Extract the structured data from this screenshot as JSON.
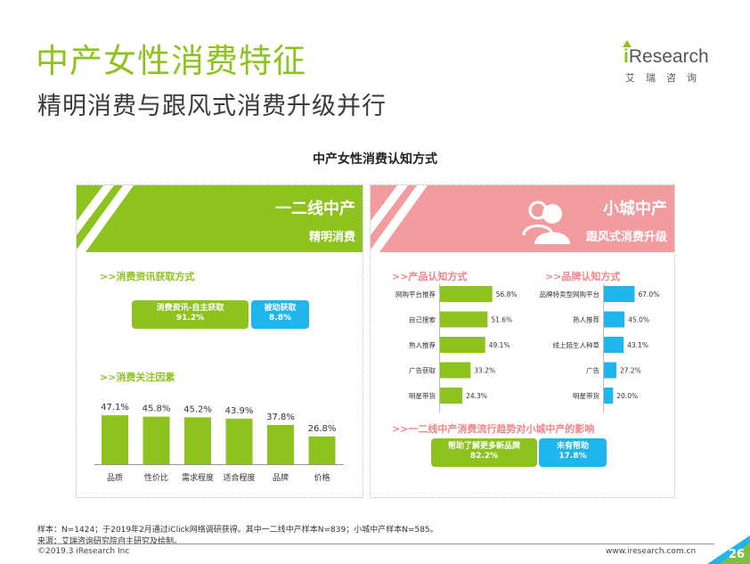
{
  "header": {
    "title": "中产女性消费特征",
    "subtitle": "精明消费与跟风式消费升级并行"
  },
  "logo": {
    "brand_i": "i",
    "brand_rest": "Research",
    "cn": "艾瑞咨询"
  },
  "chart_title": "中产女性消费认知方式",
  "left_panel": {
    "title": "一二线中产",
    "subtitle": "精明消费",
    "section1_label": ">>消费资讯获取方式",
    "pill_active_label": "消费资讯-自主获取",
    "pill_active_value": "91.2%",
    "pill_passive_label": "被动获取",
    "pill_passive_value": "8.8%",
    "section2_label": ">>消费关注因素"
  },
  "right_panel": {
    "title": "小城中产",
    "subtitle": "跟风式消费升级",
    "product_label": ">>产品认知方式",
    "brand_label": ">>品牌认知方式",
    "influence_label": ">>一二线中产消费流行趋势对小城中产的影响",
    "pill_help_label": "帮助了解更多新品牌",
    "pill_help_value": "82.2%",
    "pill_nohelp_label": "未有帮助",
    "pill_nohelp_value": "17.8%"
  },
  "footer": {
    "sample": "样本：N=1424；于2019年2月通过iClick网络调研获得。其中一二线中产样本N=839；小城中产样本N=585。",
    "source": "来源：艾瑞咨询研究院自主研究及绘制。",
    "copyright": "©2019.3 iResearch Inc",
    "url": "www.iresearch.com.cn",
    "page": "26"
  },
  "colors": {
    "green": "#8ec31f",
    "pink": "#f29c9f",
    "blue": "#1fb6ee",
    "pink_text": "#f08589"
  },
  "chart_data": [
    {
      "type": "bar",
      "title": "消费资讯获取方式",
      "categories": [
        "消费资讯-自主获取",
        "被动获取"
      ],
      "values": [
        91.2,
        8.8
      ],
      "unit": "%"
    },
    {
      "type": "bar",
      "title": "消费关注因素",
      "categories": [
        "品质",
        "性价比",
        "需求程度",
        "适合程度",
        "品牌",
        "价格"
      ],
      "values": [
        47.1,
        45.8,
        45.2,
        43.9,
        37.8,
        26.8
      ],
      "labels": [
        "47.1%",
        "45.8%",
        "45.2%",
        "43.9%",
        "37.8%",
        "26.8%"
      ],
      "unit": "%",
      "color": "#8ec31f"
    },
    {
      "type": "bar",
      "orientation": "horizontal",
      "title": "产品认知方式",
      "categories": [
        "网购平台推荐",
        "自己搜索",
        "熟人推荐",
        "广告获取",
        "明星带货"
      ],
      "values": [
        56.8,
        51.6,
        49.1,
        33.2,
        24.3
      ],
      "labels": [
        "56.8%",
        "51.6%",
        "49.1%",
        "33.2%",
        "24.3%"
      ],
      "unit": "%",
      "color": "#8ec31f"
    },
    {
      "type": "bar",
      "orientation": "horizontal",
      "title": "品牌认知方式",
      "categories": [
        "品牌特卖型网购平台",
        "熟人推荐",
        "线上陌生人种草",
        "广告",
        "明星带货"
      ],
      "values": [
        67.0,
        45.0,
        43.1,
        27.2,
        20.0
      ],
      "labels": [
        "67.0%",
        "45.0%",
        "43.1%",
        "27.2%",
        "20.0%"
      ],
      "unit": "%",
      "color": "#1fb6ee"
    },
    {
      "type": "bar",
      "title": "一二线中产消费流行趋势对小城中产的影响",
      "categories": [
        "帮助了解更多新品牌",
        "未有帮助"
      ],
      "values": [
        82.2,
        17.8
      ],
      "unit": "%"
    }
  ]
}
